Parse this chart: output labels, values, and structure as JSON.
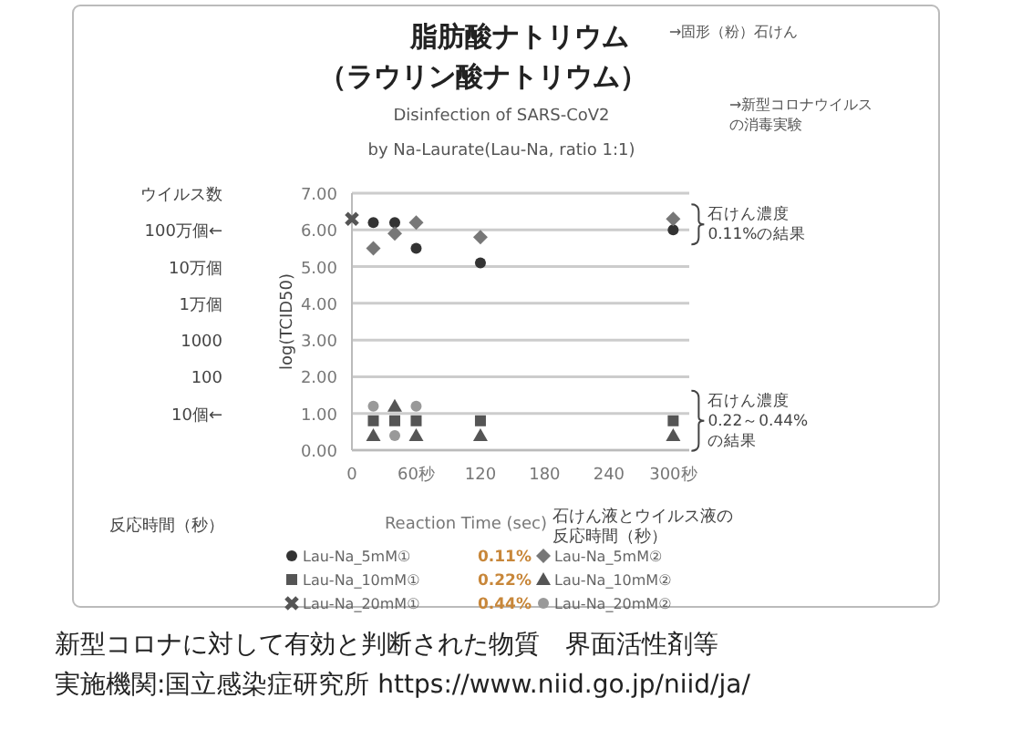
{
  "chart_data": {
    "type": "scatter",
    "title": "脂肪酸ナトリウム",
    "subtitle": "（ラウリン酸ナトリウム）",
    "xlabel": "Reaction Time (sec)",
    "ylabel": "log(TCID50)",
    "x": [
      0,
      20,
      40,
      60,
      120,
      300
    ],
    "series": [
      {
        "name": "Lau-Na_5mM①",
        "color": "#333333",
        "marker": "circle",
        "values": [
          null,
          6.2,
          6.2,
          5.5,
          5.1,
          6.0
        ]
      },
      {
        "name": "Lau-Na_5mM②",
        "color": "#777777",
        "marker": "diamond",
        "values": [
          null,
          5.5,
          5.9,
          6.2,
          5.8,
          6.3
        ]
      },
      {
        "name": "Lau-Na_10mM①",
        "color": "#555555",
        "marker": "square",
        "values": [
          null,
          0.8,
          0.8,
          0.8,
          0.8,
          0.8
        ]
      },
      {
        "name": "Lau-Na_10mM②",
        "color": "#555555",
        "marker": "triangle",
        "values": [
          null,
          0.4,
          1.2,
          0.4,
          0.4,
          0.4
        ]
      },
      {
        "name": "Lau-Na_20mM①",
        "color": "#555555",
        "marker": "cross",
        "values": [
          6.3,
          null,
          null,
          null,
          null,
          null
        ]
      },
      {
        "name": "Lau-Na_20mM②",
        "color": "#999999",
        "marker": "circle",
        "values": [
          null,
          1.2,
          0.4,
          1.2,
          null,
          null
        ]
      }
    ],
    "xlim": [
      0,
      315
    ],
    "xticks": [
      0,
      {
        "value": 60,
        "label": "60秒"
      },
      120,
      180,
      240,
      {
        "value": 300,
        "label": "300秒"
      }
    ],
    "ylim": [
      0,
      7
    ],
    "yticks": [
      {
        "value": 0,
        "label": "0.00"
      },
      {
        "value": 1,
        "label": "1.00"
      },
      {
        "value": 2,
        "label": "2.00"
      },
      {
        "value": 3,
        "label": "3.00"
      },
      {
        "value": 4,
        "label": "4.00"
      },
      {
        "value": 5,
        "label": "5.00"
      },
      {
        "value": 6,
        "label": "6.00"
      },
      {
        "value": 7,
        "label": "7.00"
      }
    ],
    "grid": "y",
    "legend": "bottom",
    "annotations": [
      "→固形（粉）石けん",
      "→新型コロナウイルスの消毒実験",
      {
        "text": "石けん濃度\n0.11%の結果",
        "x": 300,
        "y": 6.15
      },
      {
        "text": "石けん濃度\n0.22～0.44%\nの結果",
        "x": 300,
        "y": 0.8
      },
      "反応時間（秒）",
      "石けん液とウイルス液の反応時間（秒）",
      "0.11%",
      "0.22%",
      "0.44%",
      "新型コロナに対して有効と判断された物質　界面活性剤等",
      "実施機関:国立感染症研究所  https://www.niid.go.jp/niid/ja/",
      "Disinfection of SARS-CoV2",
      "by Na-Laurate(Lau-Na, ratio 1:1)",
      "10個←",
      "100",
      "1000",
      "1万個",
      "10万個",
      "100万個←",
      "ウイルス数"
    ]
  }
}
